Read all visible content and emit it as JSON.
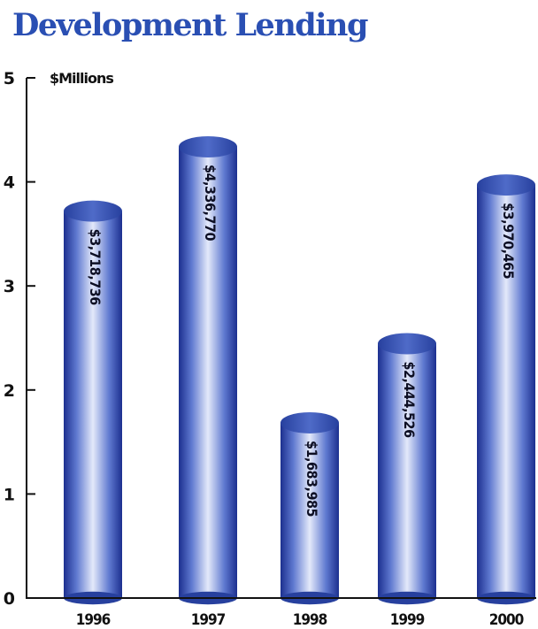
{
  "chart_data": {
    "type": "bar",
    "title": "Development Lending",
    "ylabel": "$Millions",
    "xlabel": "",
    "categories": [
      "1996",
      "1997",
      "1998",
      "1999",
      "2000"
    ],
    "values": [
      3.718736,
      4.33677,
      1.683985,
      2.444526,
      3.970465
    ],
    "data_labels": [
      "$3,718,736",
      "$4,336,770",
      "$1,683,985",
      "$2,444,526",
      "$3,970,465"
    ],
    "ylim": [
      0,
      5
    ],
    "yticks": [
      "0",
      "1",
      "2",
      "3",
      "4",
      "5"
    ],
    "grid": false,
    "bar_style": "3d-cylinder",
    "colors": {
      "title": "#2a4fb3",
      "bar_dark": "#1c2f8f",
      "bar_mid": "#5f79d0",
      "bar_light": "#e4e9fa",
      "bar_top": "#3d58b8",
      "axis": "#111111"
    }
  }
}
